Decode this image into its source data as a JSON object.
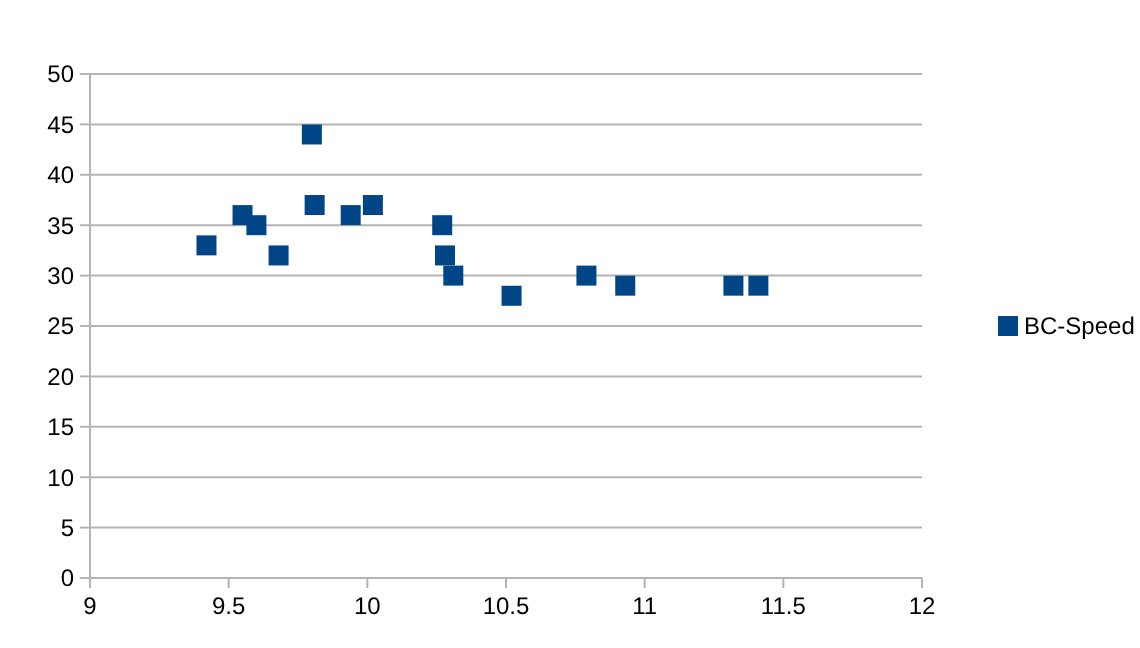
{
  "chart_data": {
    "type": "scatter",
    "x": [
      9.42,
      9.55,
      9.6,
      9.68,
      9.8,
      9.81,
      9.94,
      10.02,
      10.27,
      10.28,
      10.31,
      10.52,
      10.79,
      10.93,
      11.32,
      11.41
    ],
    "series": [
      {
        "name": "BC-Speed",
        "color": "#004586",
        "values": [
          33,
          36,
          35,
          32,
          44,
          37,
          36,
          37,
          35,
          32,
          30,
          28,
          30,
          29,
          29,
          29
        ]
      }
    ],
    "xlim": [
      9,
      12
    ],
    "xticks": [
      9,
      9.5,
      10,
      10.5,
      11,
      11.5,
      12
    ],
    "ylim": [
      0,
      50
    ],
    "yticks": [
      0,
      5,
      10,
      15,
      20,
      25,
      30,
      35,
      40,
      45,
      50
    ],
    "grid": "y",
    "legend": "right",
    "marker": "square"
  }
}
